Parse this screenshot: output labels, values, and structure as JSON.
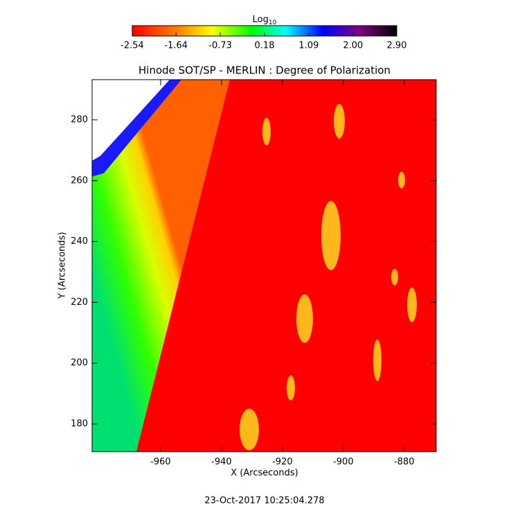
{
  "chart_data": {
    "type": "image",
    "title": "Hinode SOT/SP - MERLIN : Degree of Polarization",
    "colorbar": {
      "label": "Log",
      "label_subscript": "10",
      "lim": [
        -2.54,
        2.9
      ],
      "ticks": [
        -2.54,
        -1.64,
        -0.73,
        0.18,
        1.09,
        {
          "value": 2.0,
          "label": "2.00"
        },
        {
          "value": 2.9,
          "label": "2.90"
        }
      ]
    },
    "x_label": "X (Arcseconds)",
    "y_label": "Y (Arcseconds)",
    "xlim": [
      -982.5,
      -869.5
    ],
    "xticks": [
      -960,
      -940,
      -920,
      -900,
      -880
    ],
    "ylim": [
      170.9,
      293.2
    ],
    "yticks": [
      180,
      200,
      220,
      240,
      260,
      280
    ],
    "timestamp": "23-Oct-2017 10:25:04.278"
  }
}
